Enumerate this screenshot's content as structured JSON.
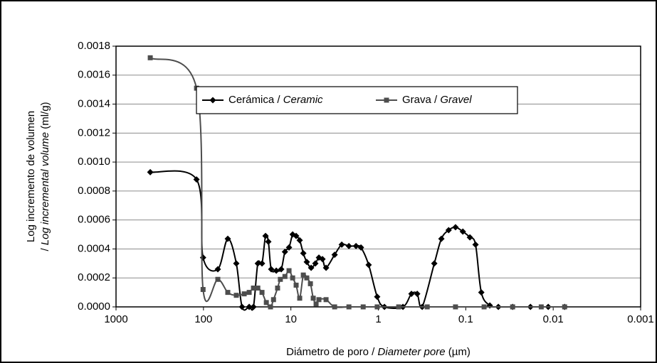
{
  "chart_data": {
    "type": "line",
    "log_x": true,
    "x_reversed": true,
    "grid": true,
    "legend": "top",
    "x_label": [
      {
        "text": "Diámetro de poro / "
      },
      {
        "text": "Diameter pore",
        "italic": true
      },
      {
        "text": " (µm)"
      }
    ],
    "y_label": [
      [
        {
          "text": "Log incremento de volumen"
        }
      ],
      [
        {
          "text": "/ "
        },
        {
          "text": "Log incremental volume",
          "italic": true
        },
        {
          "text": " (ml/g)"
        }
      ]
    ],
    "xlim": [
      1000,
      0.001
    ],
    "xticks": [
      1000,
      100,
      10,
      1,
      0.1,
      0.01,
      0.001
    ],
    "ylim": [
      0,
      0.0018
    ],
    "yticks": [
      {
        "value": 0,
        "label": "0.0000"
      },
      {
        "value": 0.0002,
        "label": "0.0002"
      },
      {
        "value": 0.0004,
        "label": "0.0004"
      },
      {
        "value": 0.0006,
        "label": "0.0006"
      },
      {
        "value": 0.0008,
        "label": "0.0008"
      },
      {
        "value": 0.001,
        "label": "0.0010"
      },
      {
        "value": 0.0012,
        "label": "0.0012"
      },
      {
        "value": 0.0014,
        "label": "0.0014"
      },
      {
        "value": 0.0016,
        "label": "0.0016"
      },
      {
        "value": 0.0018,
        "label": "0.0018"
      }
    ],
    "series": [
      {
        "name": [
          {
            "text": "Cerámica / "
          },
          {
            "text": "Ceramic",
            "italic": true
          }
        ],
        "color": "#000000",
        "marker": "diamond",
        "x": [
          406,
          120,
          101,
          68.5,
          52.7,
          42.1,
          36.2,
          30.0,
          26.8,
          23.9,
          21.4,
          19.5,
          18.1,
          16.8,
          14.7,
          12.9,
          11.7,
          10.5,
          9.55,
          8.71,
          7.93,
          7.21,
          6.58,
          5.87,
          5.25,
          4.78,
          4.35,
          3.96,
          3.16,
          2.62,
          2.17,
          1.8,
          1.58,
          1.29,
          1.03,
          0.851,
          0.523,
          0.418,
          0.359,
          0.315,
          0.229,
          0.19,
          0.157,
          0.131,
          0.108,
          0.0897,
          0.0773,
          0.0664,
          0.0531,
          0.0424,
          0.0291,
          0.0182,
          0.0114,
          0.0074
        ],
        "values": [
          0.00093,
          0.00088,
          0.00034,
          0.00026,
          0.00047,
          0.0003,
          0,
          0,
          0,
          0.0003,
          0.0003,
          0.00049,
          0.00045,
          0.00026,
          0.00025,
          0.00026,
          0.00038,
          0.00041,
          0.0005,
          0.00049,
          0.00046,
          0.00037,
          0.00031,
          0.00027,
          0.0003,
          0.00034,
          0.00033,
          0.00027,
          0.00036,
          0.00043,
          0.00042,
          0.00042,
          0.00041,
          0.00029,
          7e-05,
          0,
          0,
          9e-05,
          9e-05,
          0,
          0.0003,
          0.00047,
          0.00053,
          0.00055,
          0.00052,
          0.00048,
          0.00043,
          0.0001,
          1e-05,
          0,
          0,
          0,
          0,
          0
        ]
      },
      {
        "name": [
          {
            "text": "Grava / "
          },
          {
            "text": "Gravel",
            "italic": true
          }
        ],
        "color": "#4d4d4d",
        "marker": "square",
        "x": [
          406,
          120,
          101,
          68.5,
          52.7,
          42.1,
          34.2,
          30.0,
          26.8,
          23.9,
          21.4,
          19.1,
          17.1,
          15.8,
          14.2,
          13.2,
          11.7,
          10.5,
          9.55,
          8.71,
          7.93,
          7.21,
          6.58,
          5.98,
          5.55,
          5.15,
          4.78,
          3.96,
          3.16,
          2.17,
          1.49,
          1.03,
          0.585,
          0.276,
          0.131,
          0.0617,
          0.0291,
          0.0137,
          0.0074
        ],
        "values": [
          0.00172,
          0.00151,
          0.00012,
          0.00019,
          0.0001,
          8e-05,
          9e-05,
          0.0001,
          0.00013,
          0.00013,
          0.0001,
          3e-05,
          0,
          5e-05,
          0.00013,
          0.00019,
          0.00021,
          0.00025,
          0.0002,
          0.00015,
          6e-05,
          0.00022,
          0.0002,
          0.00016,
          6e-05,
          2e-05,
          5e-05,
          5e-05,
          0,
          0,
          0,
          0,
          0,
          0,
          0,
          0,
          0,
          0,
          0
        ]
      }
    ]
  }
}
